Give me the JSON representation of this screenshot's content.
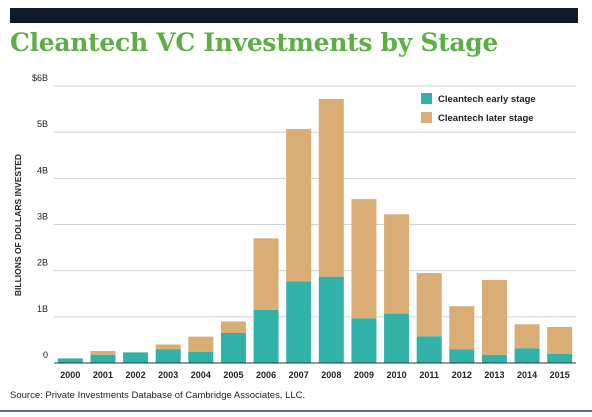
{
  "colors": {
    "early": "#31b1a7",
    "later": "#d9ad73",
    "title": "#5cb043",
    "banner": "#0f1b2d",
    "grid": "#cfd3d8",
    "axis": "#333333"
  },
  "footer": {
    "source": "Source: Private Investments Database of Cambridge Associates, LLC."
  },
  "chart_data": {
    "type": "bar",
    "stacked": true,
    "title": "Cleantech VC Investments by Stage",
    "xlabel": "",
    "ylabel": "BILLIONS OF DOLLARS INVESTED",
    "ylim": [
      0,
      6
    ],
    "grid": true,
    "legend_position": "top-right",
    "y_ticks": [
      {
        "value": 0,
        "label": "0"
      },
      {
        "value": 1,
        "label": "1B"
      },
      {
        "value": 2,
        "label": "2B"
      },
      {
        "value": 3,
        "label": "3B"
      },
      {
        "value": 4,
        "label": "4B"
      },
      {
        "value": 5,
        "label": "5B"
      },
      {
        "value": 6,
        "label": "$6B"
      }
    ],
    "categories": [
      "2000",
      "2001",
      "2002",
      "2003",
      "2004",
      "2005",
      "2006",
      "2007",
      "2008",
      "2009",
      "2010",
      "2011",
      "2012",
      "2013",
      "2014",
      "2015"
    ],
    "series": [
      {
        "name": "Cleantech early stage",
        "color": "#31b1a7",
        "values": [
          0.1,
          0.18,
          0.23,
          0.3,
          0.24,
          0.65,
          1.15,
          1.77,
          1.87,
          0.97,
          1.07,
          0.58,
          0.3,
          0.18,
          0.32,
          0.2
        ]
      },
      {
        "name": "Cleantech later stage",
        "color": "#d9ad73",
        "values": [
          0.0,
          0.08,
          0.0,
          0.1,
          0.33,
          0.25,
          1.55,
          3.3,
          3.85,
          2.58,
          2.15,
          1.37,
          0.93,
          1.62,
          0.52,
          0.58
        ]
      }
    ]
  }
}
